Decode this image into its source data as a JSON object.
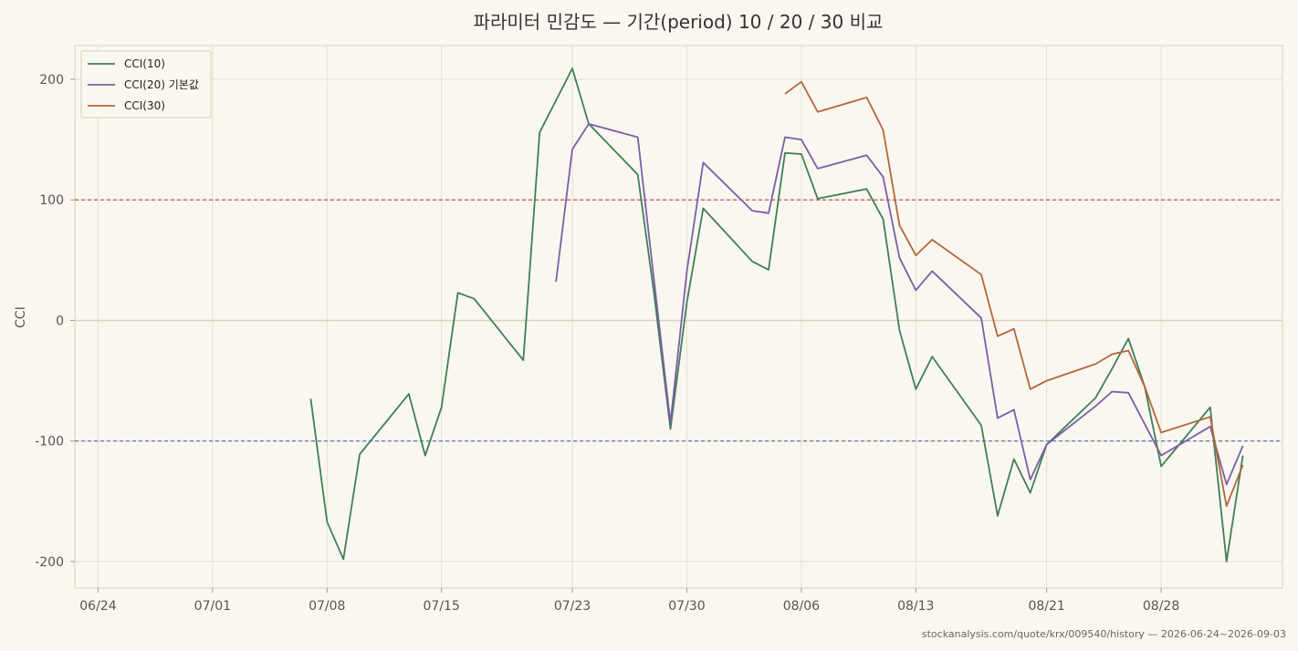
{
  "chart_data": {
    "type": "line",
    "title": "파라미터 민감도 — 기간(period) 10 / 20 / 30 비교",
    "ylabel": "CCI",
    "xlabel": "",
    "x_start": "2026-06-24",
    "x_end": "2026-09-03",
    "xticks": [
      "06/24",
      "07/01",
      "07/08",
      "07/15",
      "07/23",
      "07/30",
      "08/06",
      "08/13",
      "08/21",
      "08/28"
    ],
    "yticks": [
      200,
      100,
      0,
      -100,
      -200
    ],
    "ylim": [
      -222,
      228
    ],
    "reference_lines": [
      {
        "value": 100,
        "color": "#c44e52",
        "style": "dashed"
      },
      {
        "value": -100,
        "color": "#4c72b0",
        "style": "dashed"
      },
      {
        "value": 0,
        "color": "#d8d3bc",
        "style": "solid"
      }
    ],
    "grid": true,
    "legend_position": "top-left",
    "series": [
      {
        "name": "CCI(10)",
        "color": "#3f7f55",
        "points": [
          [
            "2026-07-07",
            -65
          ],
          [
            "2026-07-08",
            -167
          ],
          [
            "2026-07-09",
            -198
          ],
          [
            "2026-07-10",
            -111
          ],
          [
            "2026-07-13",
            -61
          ],
          [
            "2026-07-14",
            -112
          ],
          [
            "2026-07-15",
            -72
          ],
          [
            "2026-07-16",
            23
          ],
          [
            "2026-07-17",
            18
          ],
          [
            "2026-07-20",
            -33
          ],
          [
            "2026-07-21",
            156
          ],
          [
            "2026-07-23",
            209
          ],
          [
            "2026-07-24",
            163
          ],
          [
            "2026-07-27",
            121
          ],
          [
            "2026-07-28",
            22
          ],
          [
            "2026-07-29",
            -90
          ],
          [
            "2026-07-30",
            15
          ],
          [
            "2026-07-31",
            93
          ],
          [
            "2026-08-03",
            49
          ],
          [
            "2026-08-04",
            42
          ],
          [
            "2026-08-05",
            139
          ],
          [
            "2026-08-06",
            138
          ],
          [
            "2026-08-07",
            101
          ],
          [
            "2026-08-10",
            109
          ],
          [
            "2026-08-11",
            84
          ],
          [
            "2026-08-12",
            -8
          ],
          [
            "2026-08-13",
            -57
          ],
          [
            "2026-08-14",
            -30
          ],
          [
            "2026-08-17",
            -87
          ],
          [
            "2026-08-18",
            -162
          ],
          [
            "2026-08-19",
            -115
          ],
          [
            "2026-08-20",
            -143
          ],
          [
            "2026-08-21",
            -103
          ],
          [
            "2026-08-24",
            -64
          ],
          [
            "2026-08-25",
            -40
          ],
          [
            "2026-08-26",
            -15
          ],
          [
            "2026-08-27",
            -55
          ],
          [
            "2026-08-28",
            -121
          ],
          [
            "2026-08-31",
            -72
          ],
          [
            "2026-09-01",
            -200
          ],
          [
            "2026-09-02",
            -112
          ]
        ]
      },
      {
        "name": "CCI(20) 기본값",
        "color": "#7b5ea7",
        "points": [
          [
            "2026-07-22",
            32
          ],
          [
            "2026-07-23",
            142
          ],
          [
            "2026-07-24",
            163
          ],
          [
            "2026-07-27",
            152
          ],
          [
            "2026-07-28",
            33
          ],
          [
            "2026-07-29",
            -85
          ],
          [
            "2026-07-30",
            41
          ],
          [
            "2026-07-31",
            131
          ],
          [
            "2026-08-03",
            91
          ],
          [
            "2026-08-04",
            89
          ],
          [
            "2026-08-05",
            152
          ],
          [
            "2026-08-06",
            150
          ],
          [
            "2026-08-07",
            126
          ],
          [
            "2026-08-10",
            137
          ],
          [
            "2026-08-11",
            119
          ],
          [
            "2026-08-12",
            52
          ],
          [
            "2026-08-13",
            25
          ],
          [
            "2026-08-14",
            41
          ],
          [
            "2026-08-17",
            2
          ],
          [
            "2026-08-18",
            -81
          ],
          [
            "2026-08-19",
            -74
          ],
          [
            "2026-08-20",
            -132
          ],
          [
            "2026-08-21",
            -103
          ],
          [
            "2026-08-24",
            -71
          ],
          [
            "2026-08-25",
            -59
          ],
          [
            "2026-08-26",
            -60
          ],
          [
            "2026-08-27",
            -86
          ],
          [
            "2026-08-28",
            -112
          ],
          [
            "2026-08-31",
            -88
          ],
          [
            "2026-09-01",
            -136
          ],
          [
            "2026-09-02",
            -104
          ]
        ]
      },
      {
        "name": "CCI(30)",
        "color": "#b5653a",
        "points": [
          [
            "2026-08-05",
            188
          ],
          [
            "2026-08-06",
            198
          ],
          [
            "2026-08-07",
            173
          ],
          [
            "2026-08-10",
            185
          ],
          [
            "2026-08-11",
            158
          ],
          [
            "2026-08-12",
            79
          ],
          [
            "2026-08-13",
            54
          ],
          [
            "2026-08-14",
            67
          ],
          [
            "2026-08-17",
            38
          ],
          [
            "2026-08-18",
            -13
          ],
          [
            "2026-08-19",
            -7
          ],
          [
            "2026-08-20",
            -57
          ],
          [
            "2026-08-21",
            -50
          ],
          [
            "2026-08-24",
            -36
          ],
          [
            "2026-08-25",
            -28
          ],
          [
            "2026-08-26",
            -25
          ],
          [
            "2026-08-27",
            -55
          ],
          [
            "2026-08-28",
            -93
          ],
          [
            "2026-08-31",
            -80
          ],
          [
            "2026-09-01",
            -154
          ],
          [
            "2026-09-02",
            -120
          ]
        ]
      }
    ]
  },
  "footer": "stockanalysis.com/quote/krx/009540/history — 2026-06-24~2026-09-03"
}
